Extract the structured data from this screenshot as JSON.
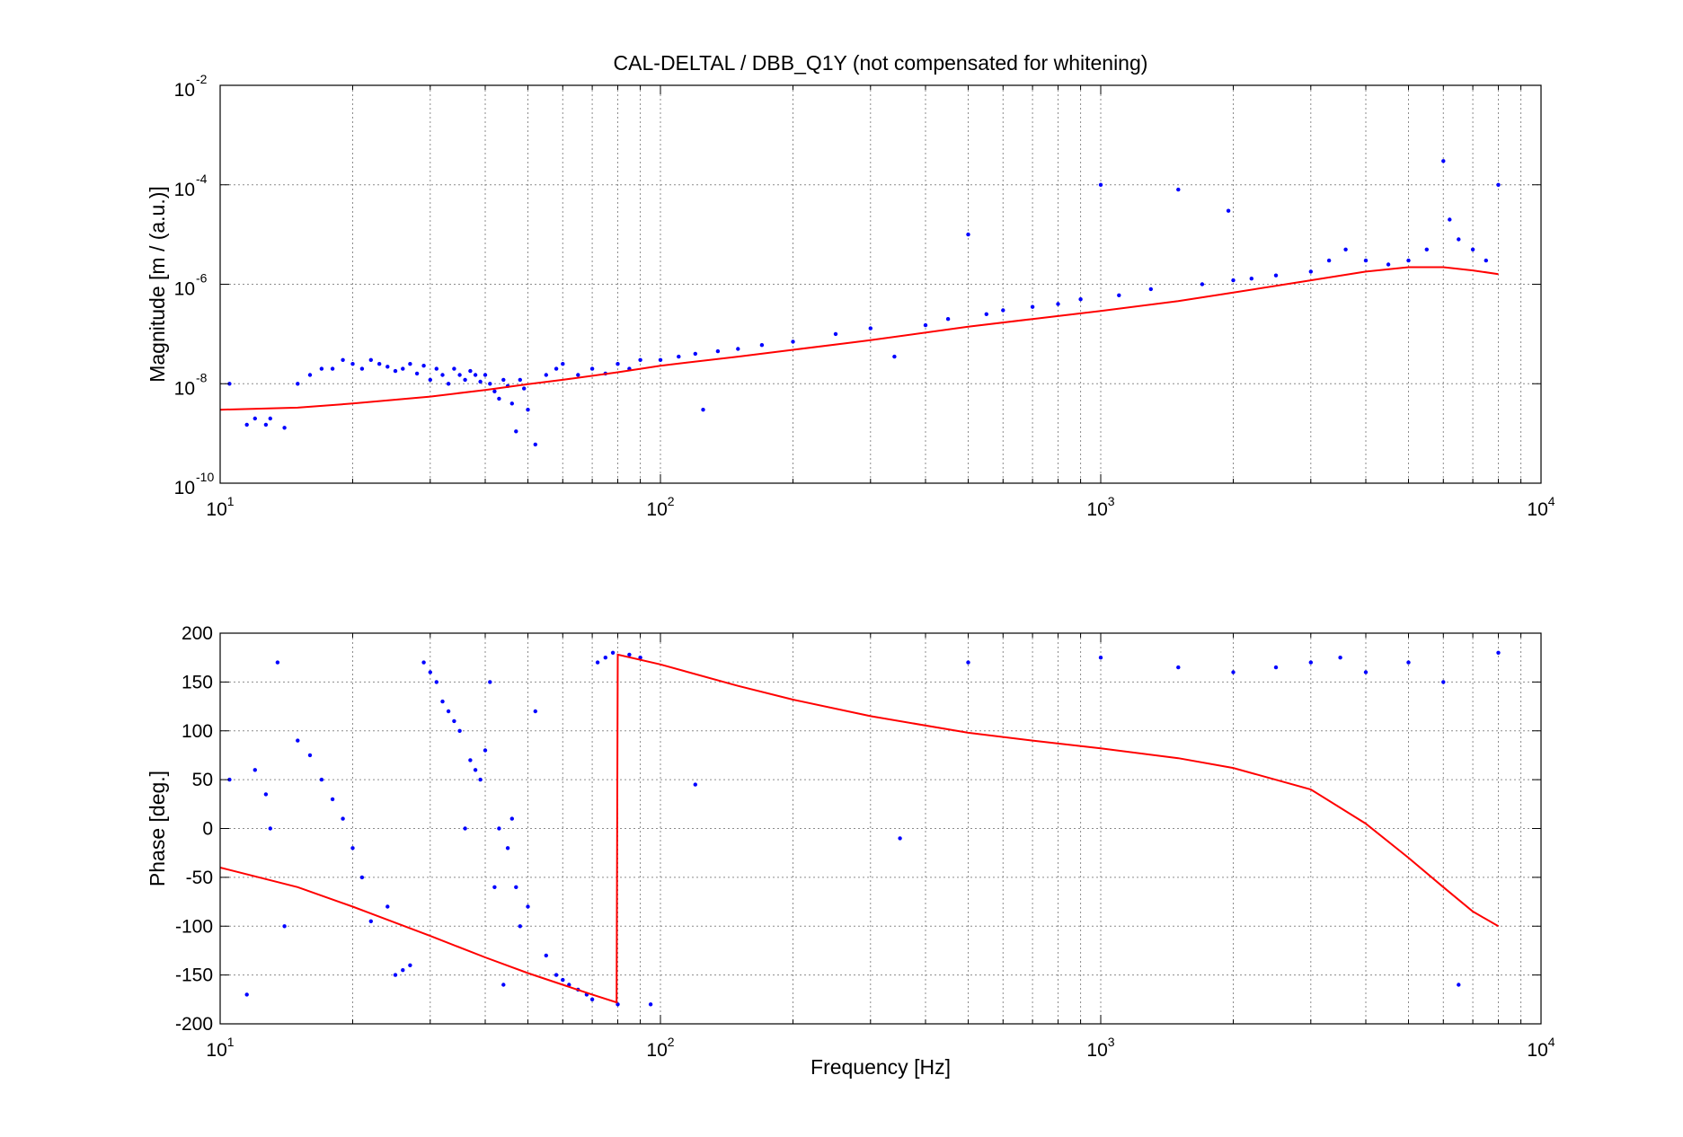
{
  "title": "CAL-DELTAL / DBB_Q1Y (not compensated for whitening)",
  "colors": {
    "measurement": "#0000ff",
    "model": "#ff0000",
    "grid": "#8c8c8c",
    "axes": "#000000"
  },
  "chart_data": [
    {
      "type": "scatter",
      "xlabel": "",
      "ylabel": "Magnitude [m / (a.u.)]",
      "xscale": "log",
      "yscale": "log",
      "xlim": [
        10,
        10000
      ],
      "ylim": [
        1e-10,
        0.01
      ],
      "xticks": [
        {
          "value": 10,
          "base": "10",
          "exp": "1"
        },
        {
          "value": 100,
          "base": "10",
          "exp": "2"
        },
        {
          "value": 1000,
          "base": "10",
          "exp": "3"
        },
        {
          "value": 10000,
          "base": "10",
          "exp": "4"
        }
      ],
      "yticks": [
        {
          "value": 1e-10,
          "base": "10",
          "exp": "-10"
        },
        {
          "value": 1e-08,
          "base": "10",
          "exp": "-8"
        },
        {
          "value": 1e-06,
          "base": "10",
          "exp": "-6"
        },
        {
          "value": 0.0001,
          "base": "10",
          "exp": "-4"
        },
        {
          "value": 0.01,
          "base": "10",
          "exp": "-2"
        }
      ],
      "grid": true,
      "series": [
        {
          "style": "points",
          "x": [
            10.5,
            11.5,
            12,
            12.7,
            13,
            14,
            15,
            16,
            17,
            18,
            19,
            20,
            21,
            22,
            23,
            24,
            25,
            26,
            27,
            28,
            29,
            30,
            31,
            32,
            33,
            34,
            35,
            36,
            37,
            38,
            39,
            40,
            41,
            42,
            43,
            44,
            45,
            46,
            47,
            48,
            49,
            50,
            52,
            55,
            58,
            60,
            65,
            70,
            75,
            80,
            85,
            90,
            100,
            110,
            120,
            125,
            135,
            150,
            170,
            200,
            250,
            300,
            340,
            400,
            450,
            500,
            550,
            600,
            700,
            800,
            900,
            1000,
            1100,
            1300,
            1500,
            1700,
            1950,
            2000,
            2200,
            2500,
            3000,
            3300,
            3600,
            4000,
            4500,
            5000,
            5500,
            6000,
            6200,
            6500,
            7000,
            7500,
            8000
          ],
          "y": [
            1e-08,
            1.5e-09,
            2e-09,
            1.5e-09,
            2e-09,
            1.3e-09,
            1e-08,
            1.5e-08,
            2e-08,
            2e-08,
            3e-08,
            2.5e-08,
            2e-08,
            3e-08,
            2.5e-08,
            2.2e-08,
            1.8e-08,
            2e-08,
            2.5e-08,
            1.6e-08,
            2.3e-08,
            1.2e-08,
            2e-08,
            1.5e-08,
            1e-08,
            2e-08,
            1.5e-08,
            1.2e-08,
            1.8e-08,
            1.5e-08,
            1.1e-08,
            1.5e-08,
            1e-08,
            7e-09,
            5e-09,
            1.2e-08,
            9e-09,
            4e-09,
            1.1e-09,
            1.2e-08,
            8e-09,
            3e-09,
            6e-10,
            1.5e-08,
            2e-08,
            2.5e-08,
            1.5e-08,
            2e-08,
            1.6e-08,
            2.5e-08,
            2e-08,
            3e-08,
            3e-08,
            3.5e-08,
            4e-08,
            3e-09,
            4.5e-08,
            5e-08,
            6e-08,
            7e-08,
            1e-07,
            1.3e-07,
            3.5e-08,
            1.5e-07,
            2e-07,
            1e-05,
            2.5e-07,
            3e-07,
            3.5e-07,
            4e-07,
            5e-07,
            0.0001,
            6e-07,
            8e-07,
            8e-05,
            1e-06,
            3e-05,
            1.2e-06,
            1.3e-06,
            1.5e-06,
            1.8e-06,
            3e-06,
            5e-06,
            3e-06,
            2.5e-06,
            3e-06,
            5e-06,
            0.0003,
            2e-05,
            8e-06,
            5e-06,
            3e-06,
            0.0001
          ]
        },
        {
          "style": "line",
          "x": [
            10,
            15,
            20,
            30,
            40,
            50,
            60,
            80,
            100,
            150,
            200,
            300,
            500,
            700,
            1000,
            1500,
            2000,
            3000,
            4000,
            5000,
            6000,
            7000,
            8000
          ],
          "y": [
            3e-09,
            3.3e-09,
            4e-09,
            5.5e-09,
            7.5e-09,
            9.8e-09,
            1.2e-08,
            1.7e-08,
            2.3e-08,
            3.5e-08,
            4.8e-08,
            7.5e-08,
            1.4e-07,
            2e-07,
            2.9e-07,
            4.6e-07,
            6.8e-07,
            1.2e-06,
            1.8e-06,
            2.2e-06,
            2.2e-06,
            1.9e-06,
            1.6e-06
          ]
        }
      ]
    },
    {
      "type": "scatter",
      "xlabel": "Frequency [Hz]",
      "ylabel": "Phase [deg.]",
      "xscale": "log",
      "yscale": "linear",
      "xlim": [
        10,
        10000
      ],
      "ylim": [
        -200,
        200
      ],
      "xticks": [
        {
          "value": 10,
          "base": "10",
          "exp": "1"
        },
        {
          "value": 100,
          "base": "10",
          "exp": "2"
        },
        {
          "value": 1000,
          "base": "10",
          "exp": "3"
        },
        {
          "value": 10000,
          "base": "10",
          "exp": "4"
        }
      ],
      "yticks": [
        {
          "value": 200,
          "label": "200"
        },
        {
          "value": 150,
          "label": "150"
        },
        {
          "value": 100,
          "label": "100"
        },
        {
          "value": 50,
          "label": "50"
        },
        {
          "value": 0,
          "label": "0"
        },
        {
          "value": -50,
          "label": "-50"
        },
        {
          "value": -100,
          "label": "-100"
        },
        {
          "value": -150,
          "label": "-150"
        },
        {
          "value": -200,
          "label": "-200"
        }
      ],
      "grid": true,
      "series": [
        {
          "style": "points",
          "x": [
            10.5,
            11.5,
            12,
            12.7,
            13,
            13.5,
            14,
            15,
            16,
            17,
            18,
            19,
            20,
            21,
            22,
            24,
            25,
            26,
            27,
            29,
            30,
            31,
            32,
            33,
            34,
            35,
            36,
            37,
            38,
            39,
            40,
            41,
            42,
            43,
            44,
            45,
            46,
            47,
            48,
            50,
            52,
            55,
            58,
            60,
            62,
            65,
            68,
            70,
            72,
            75,
            78,
            80,
            85,
            90,
            95,
            120,
            350,
            500,
            1000,
            1500,
            2000,
            2500,
            3000,
            3500,
            4000,
            5000,
            6000,
            6500,
            8000
          ],
          "y": [
            50,
            -170,
            60,
            35,
            0,
            170,
            -100,
            90,
            75,
            50,
            30,
            10,
            -20,
            -50,
            -95,
            -80,
            -150,
            -145,
            -140,
            170,
            160,
            150,
            130,
            120,
            110,
            100,
            0,
            70,
            60,
            50,
            80,
            150,
            -60,
            0,
            -160,
            -20,
            10,
            -60,
            -100,
            -80,
            120,
            -130,
            -150,
            -155,
            -160,
            -165,
            -170,
            -175,
            170,
            175,
            180,
            -180,
            178,
            175,
            -180,
            45,
            -10,
            170,
            175,
            165,
            160,
            165,
            170,
            175,
            160,
            170,
            150,
            -160,
            180
          ]
        },
        {
          "style": "line",
          "x": [
            10,
            15,
            20,
            30,
            40,
            50,
            60,
            70,
            79.5,
            80,
            100,
            150,
            200,
            300,
            500,
            700,
            1000,
            1500,
            2000,
            3000,
            4000,
            5000,
            6000,
            7000,
            8000
          ],
          "y": [
            -40,
            -60,
            -80,
            -110,
            -132,
            -148,
            -160,
            -170,
            -178,
            178,
            168,
            146,
            132,
            115,
            98,
            90,
            82,
            72,
            62,
            40,
            5,
            -30,
            -60,
            -85,
            -100
          ]
        }
      ]
    }
  ]
}
